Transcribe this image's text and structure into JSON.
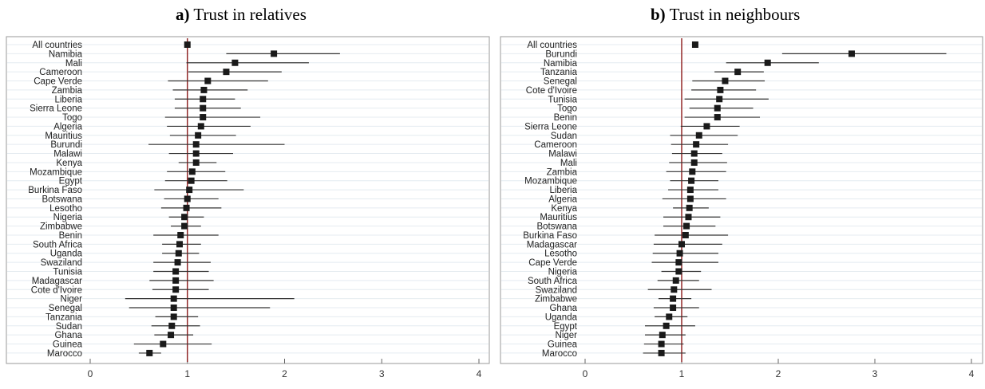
{
  "chart_data": [
    {
      "type": "forest",
      "title_letter": "a)",
      "title": "Trust in relatives",
      "xlim": [
        0,
        4
      ],
      "xticks": [
        0,
        1,
        2,
        3,
        4
      ],
      "reference_line": 1,
      "reference_color": "#8b1a1a",
      "marker_color": "#1a1a1a",
      "grid": true,
      "rows": [
        {
          "label": "All countries",
          "est": 1.0,
          "lo": 0.98,
          "hi": 1.02
        },
        {
          "label": "Namibia",
          "est": 1.89,
          "lo": 1.4,
          "hi": 2.57
        },
        {
          "label": "Mali",
          "est": 1.49,
          "lo": 0.99,
          "hi": 2.25
        },
        {
          "label": "Cameroon",
          "est": 1.4,
          "lo": 1.01,
          "hi": 1.97
        },
        {
          "label": "Cape Verde",
          "est": 1.21,
          "lo": 0.8,
          "hi": 1.83
        },
        {
          "label": "Zambia",
          "est": 1.17,
          "lo": 0.85,
          "hi": 1.62
        },
        {
          "label": "Liberia",
          "est": 1.16,
          "lo": 0.87,
          "hi": 1.49
        },
        {
          "label": "Sierra Leone",
          "est": 1.16,
          "lo": 0.87,
          "hi": 1.55
        },
        {
          "label": "Togo",
          "est": 1.16,
          "lo": 0.77,
          "hi": 1.75
        },
        {
          "label": "Algeria",
          "est": 1.14,
          "lo": 0.79,
          "hi": 1.65
        },
        {
          "label": "Mauritius",
          "est": 1.11,
          "lo": 0.82,
          "hi": 1.5
        },
        {
          "label": "Burundi",
          "est": 1.09,
          "lo": 0.6,
          "hi": 2.0
        },
        {
          "label": "Malawi",
          "est": 1.09,
          "lo": 0.81,
          "hi": 1.47
        },
        {
          "label": "Kenya",
          "est": 1.09,
          "lo": 0.91,
          "hi": 1.3
        },
        {
          "label": "Mozambique",
          "est": 1.05,
          "lo": 0.79,
          "hi": 1.39
        },
        {
          "label": "Egypt",
          "est": 1.04,
          "lo": 0.77,
          "hi": 1.41
        },
        {
          "label": "Burkina Faso",
          "est": 1.02,
          "lo": 0.66,
          "hi": 1.58
        },
        {
          "label": "Botswana",
          "est": 1.0,
          "lo": 0.76,
          "hi": 1.32
        },
        {
          "label": "Lesotho",
          "est": 0.99,
          "lo": 0.73,
          "hi": 1.35
        },
        {
          "label": "Nigeria",
          "est": 0.97,
          "lo": 0.81,
          "hi": 1.17
        },
        {
          "label": "Zimbabwe",
          "est": 0.97,
          "lo": 0.83,
          "hi": 1.14
        },
        {
          "label": "Benin",
          "est": 0.93,
          "lo": 0.65,
          "hi": 1.32
        },
        {
          "label": "South Africa",
          "est": 0.92,
          "lo": 0.74,
          "hi": 1.14
        },
        {
          "label": "Uganda",
          "est": 0.91,
          "lo": 0.74,
          "hi": 1.12
        },
        {
          "label": "Swaziland",
          "est": 0.9,
          "lo": 0.65,
          "hi": 1.24
        },
        {
          "label": "Tunisia",
          "est": 0.88,
          "lo": 0.65,
          "hi": 1.22
        },
        {
          "label": "Madagascar",
          "est": 0.88,
          "lo": 0.61,
          "hi": 1.27
        },
        {
          "label": "Cote d'Ivoire",
          "est": 0.88,
          "lo": 0.64,
          "hi": 1.22
        },
        {
          "label": "Niger",
          "est": 0.86,
          "lo": 0.36,
          "hi": 2.1
        },
        {
          "label": "Senegal",
          "est": 0.86,
          "lo": 0.4,
          "hi": 1.85
        },
        {
          "label": "Tanzania",
          "est": 0.86,
          "lo": 0.67,
          "hi": 1.11
        },
        {
          "label": "Sudan",
          "est": 0.84,
          "lo": 0.63,
          "hi": 1.13
        },
        {
          "label": "Ghana",
          "est": 0.83,
          "lo": 0.66,
          "hi": 1.06
        },
        {
          "label": "Guinea",
          "est": 0.75,
          "lo": 0.45,
          "hi": 1.25
        },
        {
          "label": "Marocco",
          "est": 0.61,
          "lo": 0.5,
          "hi": 0.73
        }
      ]
    },
    {
      "type": "forest",
      "title_letter": "b)",
      "title": "Trust in neighbours",
      "xlim": [
        0,
        4
      ],
      "xticks": [
        0,
        1,
        2,
        3,
        4
      ],
      "reference_line": 1,
      "reference_color": "#8b1a1a",
      "marker_color": "#1a1a1a",
      "grid": true,
      "rows": [
        {
          "label": "All countries",
          "est": 1.14,
          "lo": 1.11,
          "hi": 1.17
        },
        {
          "label": "Burundi",
          "est": 2.76,
          "lo": 2.04,
          "hi": 3.74
        },
        {
          "label": "Namibia",
          "est": 1.89,
          "lo": 1.46,
          "hi": 2.42
        },
        {
          "label": "Tanzania",
          "est": 1.58,
          "lo": 1.34,
          "hi": 1.85
        },
        {
          "label": "Senegal",
          "est": 1.45,
          "lo": 1.11,
          "hi": 1.86
        },
        {
          "label": "Cote d'Ivoire",
          "est": 1.4,
          "lo": 1.1,
          "hi": 1.77
        },
        {
          "label": "Tunisia",
          "est": 1.39,
          "lo": 1.03,
          "hi": 1.9
        },
        {
          "label": "Togo",
          "est": 1.37,
          "lo": 1.08,
          "hi": 1.74
        },
        {
          "label": "Benin",
          "est": 1.37,
          "lo": 1.03,
          "hi": 1.81
        },
        {
          "label": "Sierra Leone",
          "est": 1.26,
          "lo": 0.99,
          "hi": 1.6
        },
        {
          "label": "Sudan",
          "est": 1.18,
          "lo": 0.88,
          "hi": 1.58
        },
        {
          "label": "Cameroon",
          "est": 1.15,
          "lo": 0.89,
          "hi": 1.48
        },
        {
          "label": "Malawi",
          "est": 1.13,
          "lo": 0.9,
          "hi": 1.42
        },
        {
          "label": "Mali",
          "est": 1.13,
          "lo": 0.87,
          "hi": 1.47
        },
        {
          "label": "Zambia",
          "est": 1.11,
          "lo": 0.84,
          "hi": 1.46
        },
        {
          "label": "Mozambique",
          "est": 1.1,
          "lo": 0.88,
          "hi": 1.38
        },
        {
          "label": "Liberia",
          "est": 1.09,
          "lo": 0.86,
          "hi": 1.38
        },
        {
          "label": "Algeria",
          "est": 1.09,
          "lo": 0.8,
          "hi": 1.46
        },
        {
          "label": "Kenya",
          "est": 1.08,
          "lo": 0.91,
          "hi": 1.28
        },
        {
          "label": "Mauritius",
          "est": 1.07,
          "lo": 0.81,
          "hi": 1.4
        },
        {
          "label": "Botswana",
          "est": 1.05,
          "lo": 0.81,
          "hi": 1.35
        },
        {
          "label": "Burkina Faso",
          "est": 1.04,
          "lo": 0.72,
          "hi": 1.48
        },
        {
          "label": "Madagascar",
          "est": 1.0,
          "lo": 0.71,
          "hi": 1.42
        },
        {
          "label": "Lesotho",
          "est": 0.98,
          "lo": 0.7,
          "hi": 1.38
        },
        {
          "label": "Cape Verde",
          "est": 0.97,
          "lo": 0.69,
          "hi": 1.38
        },
        {
          "label": "Nigeria",
          "est": 0.97,
          "lo": 0.79,
          "hi": 1.2
        },
        {
          "label": "South Africa",
          "est": 0.94,
          "lo": 0.75,
          "hi": 1.18
        },
        {
          "label": "Swaziland",
          "est": 0.92,
          "lo": 0.65,
          "hi": 1.31
        },
        {
          "label": "Zimbabwe",
          "est": 0.91,
          "lo": 0.76,
          "hi": 1.1
        },
        {
          "label": "Ghana",
          "est": 0.91,
          "lo": 0.71,
          "hi": 1.18
        },
        {
          "label": "Uganda",
          "est": 0.87,
          "lo": 0.72,
          "hi": 1.06
        },
        {
          "label": "Egypt",
          "est": 0.84,
          "lo": 0.62,
          "hi": 1.14
        },
        {
          "label": "Niger",
          "est": 0.8,
          "lo": 0.62,
          "hi": 1.04
        },
        {
          "label": "Guinea",
          "est": 0.79,
          "lo": 0.61,
          "hi": 1.02
        },
        {
          "label": "Marocco",
          "est": 0.79,
          "lo": 0.6,
          "hi": 1.04
        }
      ]
    }
  ]
}
